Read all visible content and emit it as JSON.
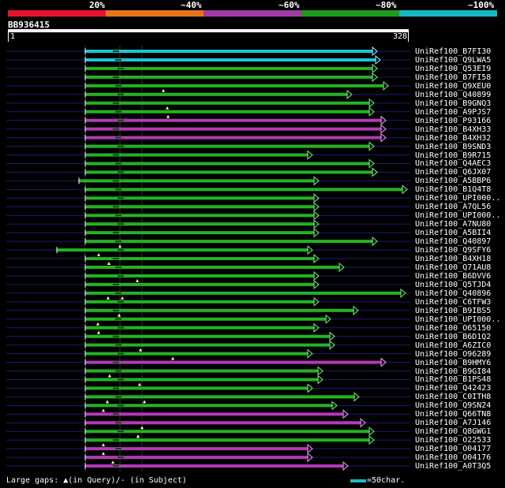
{
  "legend": {
    "labels": [
      "20%",
      "~40%",
      "~60%",
      "~80%",
      "~100%"
    ],
    "colors": [
      "#e8132a",
      "#e8741a",
      "#a23aa5",
      "#1c9c1c",
      "#19b6c2"
    ]
  },
  "query": {
    "id": "BB936415",
    "start": "1",
    "end": "328"
  },
  "footer": {
    "gaps_text": "Large gaps: ▲(in Query)/- (in Subject)",
    "scale_text": "=50char."
  },
  "colors": {
    "cyan": "#19c7d4",
    "green": "#22b322",
    "purple": "#b23ab7",
    "navy": "#1b1b7a",
    "gap": "#0d4d0d",
    "arrow_green": "#7cf07c",
    "arrow_purple": "#f09cf5",
    "arrow_cyan": "#9cf5ff"
  },
  "hits": [
    {
      "name": "UniRef100_B7FI30",
      "color": "cyan"
    },
    {
      "name": "UniRef100_Q9LWA5",
      "color": "cyan"
    },
    {
      "name": "UniRef100_Q53EI9",
      "color": "green"
    },
    {
      "name": "UniRef100_B7FI58",
      "color": "green"
    },
    {
      "name": "UniRef100_Q9XEU0",
      "color": "green"
    },
    {
      "name": "UniRef100_Q40899",
      "color": "green"
    },
    {
      "name": "UniRef100_B9GNQ3",
      "color": "green"
    },
    {
      "name": "UniRef100_A9PJS7",
      "color": "green"
    },
    {
      "name": "UniRef100_P93166",
      "color": "purple"
    },
    {
      "name": "UniRef100_B4XH33",
      "color": "purple"
    },
    {
      "name": "UniRef100_B4XH32",
      "color": "purple"
    },
    {
      "name": "UniRef100_B9SND3",
      "color": "green"
    },
    {
      "name": "UniRef100_B9R715",
      "color": "green"
    },
    {
      "name": "UniRef100_Q4AEC3",
      "color": "green"
    },
    {
      "name": "UniRef100_Q6JX07",
      "color": "green"
    },
    {
      "name": "UniRef100_A5BBP6",
      "color": "green"
    },
    {
      "name": "UniRef100_B1Q4T8",
      "color": "green"
    },
    {
      "name": "UniRef100_UPI000..",
      "color": "green"
    },
    {
      "name": "UniRef100_A7QL56",
      "color": "green"
    },
    {
      "name": "UniRef100_UPI000..",
      "color": "green"
    },
    {
      "name": "UniRef100_A7NU80",
      "color": "green"
    },
    {
      "name": "UniRef100_A5BII4",
      "color": "green"
    },
    {
      "name": "UniRef100_Q40897",
      "color": "green"
    },
    {
      "name": "UniRef100_Q9SFY6",
      "color": "green"
    },
    {
      "name": "UniRef100_B4XH18",
      "color": "green"
    },
    {
      "name": "UniRef100_Q71AU8",
      "color": "green"
    },
    {
      "name": "UniRef100_B6DVV6",
      "color": "green"
    },
    {
      "name": "UniRef100_Q5TJD4",
      "color": "green"
    },
    {
      "name": "UniRef100_Q40896",
      "color": "green"
    },
    {
      "name": "UniRef100_C6TFW3",
      "color": "green"
    },
    {
      "name": "UniRef100_B9IBS5",
      "color": "green"
    },
    {
      "name": "UniRef100_UPI000..",
      "color": "green"
    },
    {
      "name": "UniRef100_O65150",
      "color": "green"
    },
    {
      "name": "UniRef100_B6D1Q2",
      "color": "green"
    },
    {
      "name": "UniRef100_A6ZIC0",
      "color": "green"
    },
    {
      "name": "UniRef100_O96289",
      "color": "green"
    },
    {
      "name": "UniRef100_B9HMY6",
      "color": "purple"
    },
    {
      "name": "UniRef100_B9GI84",
      "color": "green"
    },
    {
      "name": "UniRef100_B1PS48",
      "color": "green"
    },
    {
      "name": "UniRef100_Q42423",
      "color": "green"
    },
    {
      "name": "UniRef100_C0ITH8",
      "color": "green"
    },
    {
      "name": "UniRef100_Q9SN24",
      "color": "green"
    },
    {
      "name": "UniRef100_Q66TN8",
      "color": "purple"
    },
    {
      "name": "UniRef100_A7J146",
      "color": "purple"
    },
    {
      "name": "UniRef100_Q8GWG1",
      "color": "green"
    },
    {
      "name": "UniRef100_O22533",
      "color": "green"
    },
    {
      "name": "UniRef100_O04177",
      "color": "purple"
    },
    {
      "name": "UniRef100_O04176",
      "color": "purple"
    },
    {
      "name": "UniRef100_A0T3Q5",
      "color": "purple"
    }
  ]
}
